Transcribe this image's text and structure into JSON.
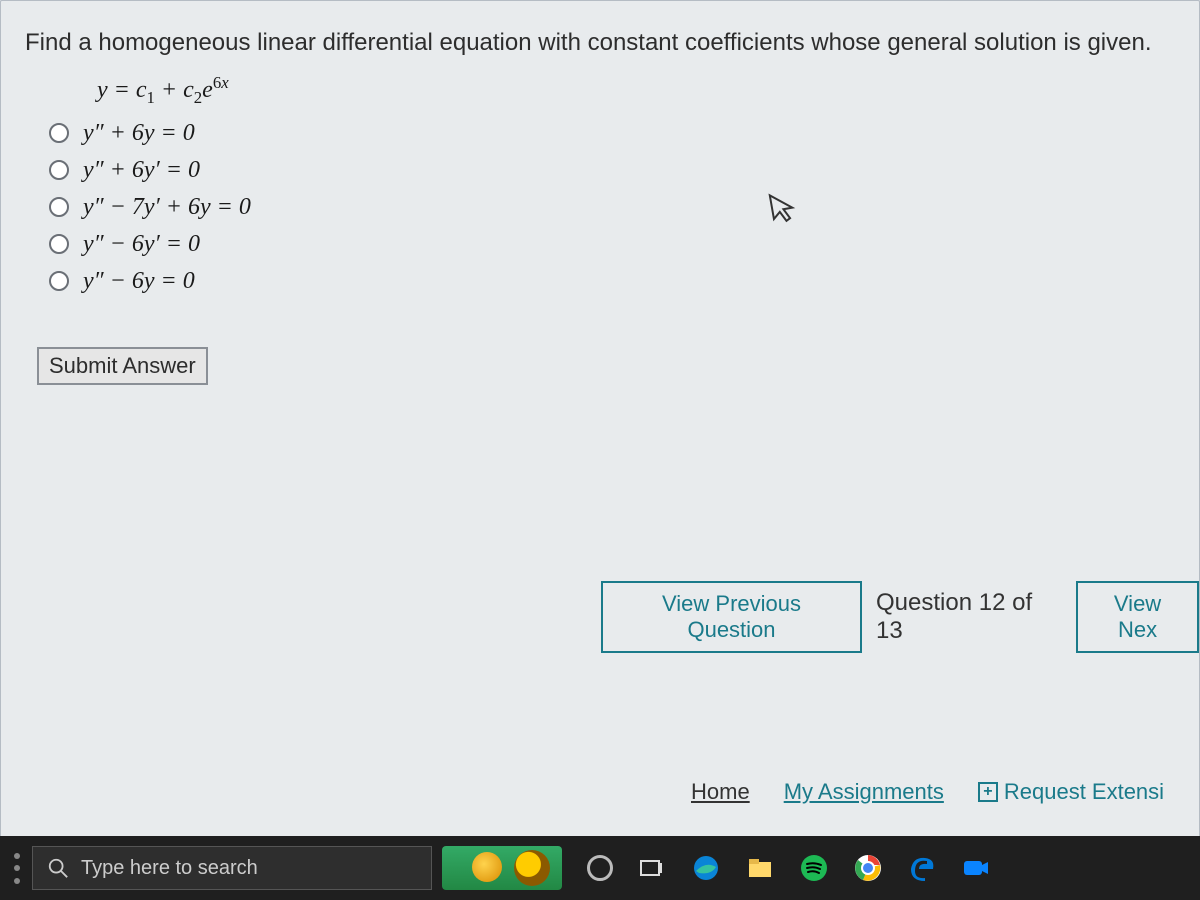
{
  "question": {
    "prompt": "Find a homogeneous linear differential equation with constant coefficients whose general solution is given.",
    "given_html": "<span>y</span> = <span>c</span><span class='sub upright'>1</span> + <span>c</span><span class='sub upright'>2</span><span>e</span><span class='sup upright'>6<span style='font-style:italic'>x</span></span>",
    "options": [
      {
        "html": "<span>y</span>″ + 6<span>y</span> = 0"
      },
      {
        "html": "<span>y</span>″ + 6<span>y</span>′ = 0"
      },
      {
        "html": "<span>y</span>″ − 7<span>y</span>′ + 6<span>y</span> = 0"
      },
      {
        "html": "<span>y</span>″ − 6<span>y</span>′ = 0"
      },
      {
        "html": "<span>y</span>″ − 6<span>y</span> = 0"
      }
    ],
    "submit_label": "Submit Answer"
  },
  "pager": {
    "prev_label": "View Previous Question",
    "counter": "Question 12 of 13",
    "next_label": "View Nex"
  },
  "footer": {
    "home": "Home",
    "assignments": "My Assignments",
    "extension": "Request Extensi"
  },
  "taskbar": {
    "search_placeholder": "Type here to search"
  },
  "colors": {
    "panel_bg": "#e8ebed",
    "accent": "#1a7a8a",
    "text": "#2d2d2d"
  }
}
